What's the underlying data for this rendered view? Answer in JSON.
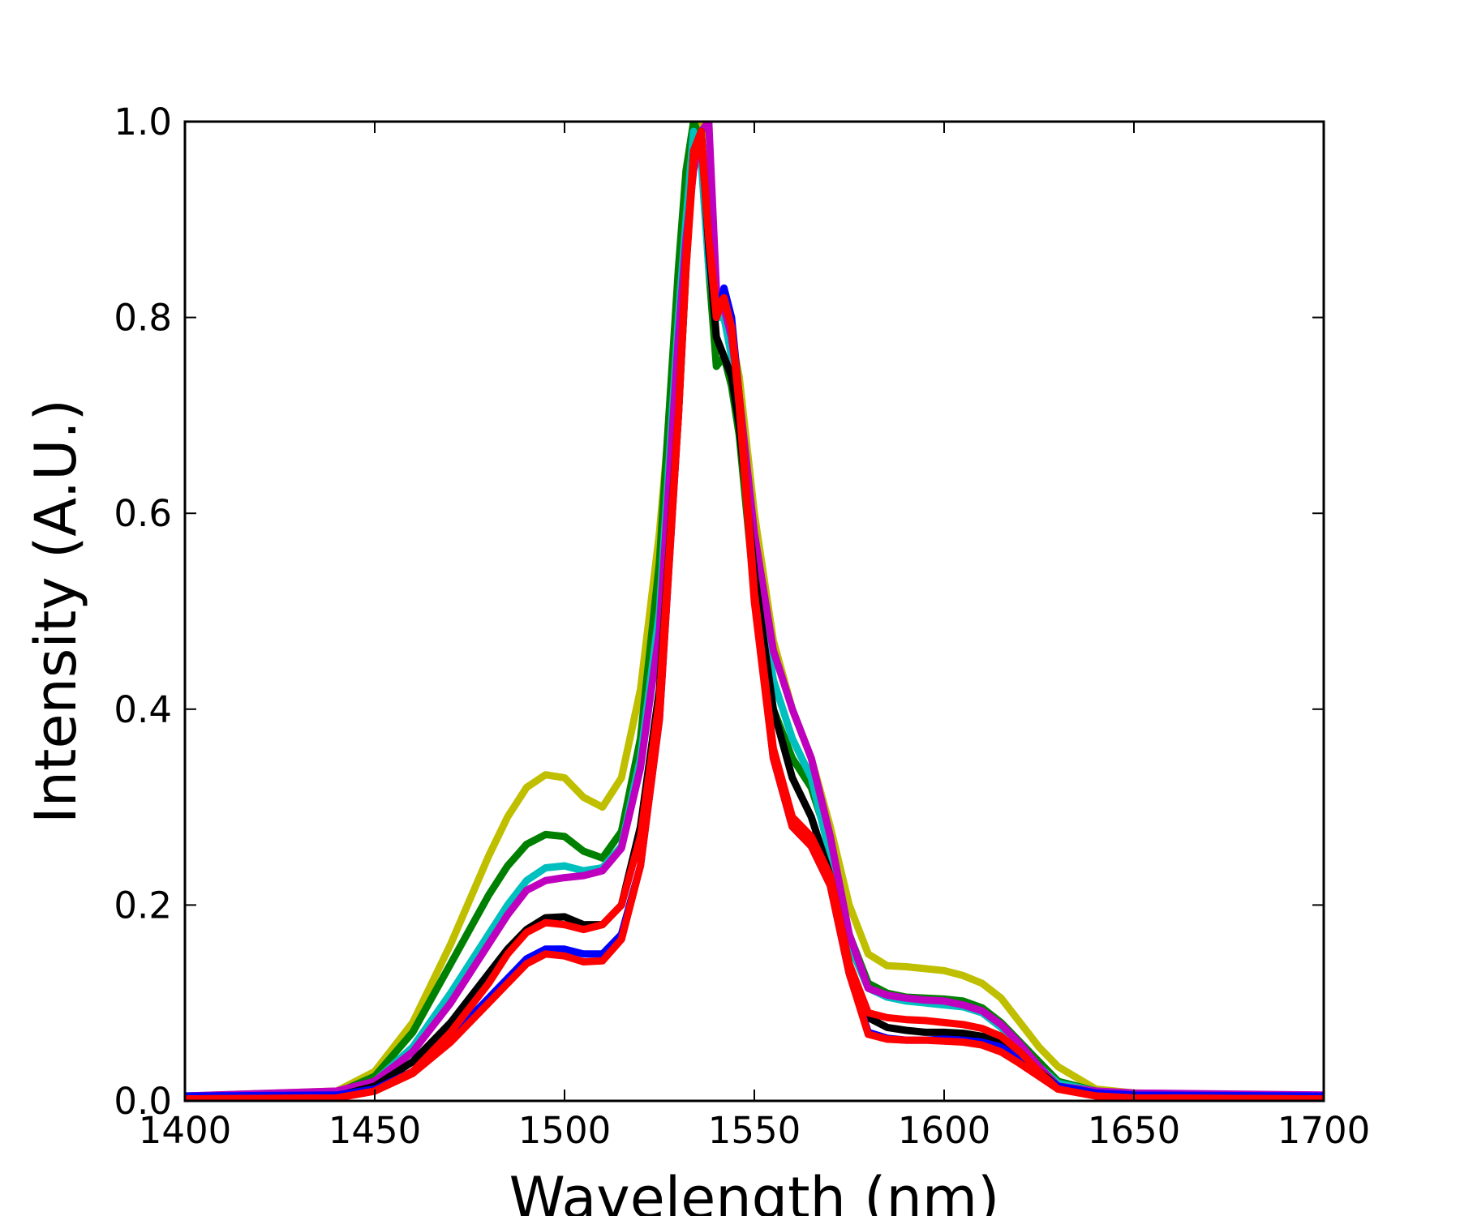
{
  "chart_data": {
    "type": "line",
    "title": "",
    "xlabel": "Wavelength (nm)",
    "ylabel": "Intensity (A.U.)",
    "xlim": [
      1400,
      1700
    ],
    "ylim": [
      0.0,
      1.0
    ],
    "x_ticks": [
      "1400",
      "1450",
      "1500",
      "1550",
      "1600",
      "1650",
      "1700"
    ],
    "y_ticks": [
      "0.0",
      "0.2",
      "0.4",
      "0.6",
      "0.8",
      "1.0"
    ],
    "grid": false,
    "legend": "none",
    "x": [
      1400,
      1440,
      1450,
      1460,
      1470,
      1480,
      1485,
      1490,
      1495,
      1500,
      1505,
      1510,
      1515,
      1520,
      1525,
      1530,
      1532,
      1534,
      1536,
      1538,
      1540,
      1542,
      1544,
      1546,
      1550,
      1555,
      1560,
      1565,
      1570,
      1575,
      1580,
      1585,
      1590,
      1595,
      1600,
      1605,
      1610,
      1615,
      1620,
      1625,
      1630,
      1640,
      1650,
      1700
    ],
    "series": [
      {
        "color": "#bfbf00",
        "values": [
          0.005,
          0.01,
          0.03,
          0.08,
          0.16,
          0.25,
          0.29,
          0.32,
          0.333,
          0.33,
          0.31,
          0.3,
          0.33,
          0.42,
          0.58,
          0.8,
          0.9,
          0.98,
          1.0,
          0.9,
          0.83,
          0.8,
          0.78,
          0.74,
          0.6,
          0.47,
          0.4,
          0.35,
          0.28,
          0.2,
          0.15,
          0.138,
          0.137,
          0.135,
          0.133,
          0.128,
          0.12,
          0.105,
          0.08,
          0.055,
          0.035,
          0.012,
          0.008,
          0.005
        ]
      },
      {
        "color": "#008000",
        "values": [
          0.005,
          0.008,
          0.025,
          0.07,
          0.14,
          0.21,
          0.24,
          0.262,
          0.272,
          0.27,
          0.255,
          0.248,
          0.275,
          0.37,
          0.55,
          0.85,
          0.95,
          1.0,
          0.98,
          0.85,
          0.75,
          0.76,
          0.73,
          0.68,
          0.52,
          0.4,
          0.35,
          0.32,
          0.26,
          0.17,
          0.12,
          0.11,
          0.106,
          0.105,
          0.104,
          0.102,
          0.095,
          0.08,
          0.06,
          0.04,
          0.02,
          0.01,
          0.005,
          0.004
        ]
      },
      {
        "color": "#00bfbf",
        "values": [
          0.005,
          0.008,
          0.02,
          0.055,
          0.11,
          0.17,
          0.2,
          0.225,
          0.238,
          0.24,
          0.235,
          0.238,
          0.26,
          0.35,
          0.5,
          0.8,
          0.9,
          0.99,
          0.96,
          0.85,
          0.8,
          0.8,
          0.76,
          0.7,
          0.56,
          0.43,
          0.37,
          0.33,
          0.25,
          0.16,
          0.115,
          0.106,
          0.102,
          0.1,
          0.098,
          0.096,
          0.09,
          0.075,
          0.055,
          0.035,
          0.018,
          0.01,
          0.006,
          0.005
        ]
      },
      {
        "color": "#bf00bf",
        "values": [
          0.005,
          0.01,
          0.02,
          0.05,
          0.1,
          0.16,
          0.19,
          0.215,
          0.225,
          0.228,
          0.23,
          0.235,
          0.258,
          0.34,
          0.48,
          0.78,
          0.88,
          0.95,
          0.99,
          1.0,
          0.83,
          0.81,
          0.78,
          0.72,
          0.58,
          0.46,
          0.4,
          0.35,
          0.27,
          0.17,
          0.115,
          0.108,
          0.105,
          0.103,
          0.102,
          0.098,
          0.092,
          0.078,
          0.058,
          0.035,
          0.015,
          0.01,
          0.008,
          0.006
        ]
      },
      {
        "color": "#000000",
        "values": [
          0.003,
          0.005,
          0.015,
          0.04,
          0.08,
          0.13,
          0.155,
          0.175,
          0.187,
          0.188,
          0.18,
          0.18,
          0.2,
          0.28,
          0.42,
          0.7,
          0.85,
          0.97,
          0.99,
          0.87,
          0.78,
          0.76,
          0.74,
          0.69,
          0.54,
          0.4,
          0.33,
          0.29,
          0.23,
          0.14,
          0.085,
          0.075,
          0.072,
          0.07,
          0.07,
          0.069,
          0.066,
          0.058,
          0.045,
          0.03,
          0.015,
          0.008,
          0.005,
          0.004
        ]
      },
      {
        "color": "#0000ff",
        "values": [
          0.005,
          0.006,
          0.012,
          0.03,
          0.065,
          0.105,
          0.125,
          0.145,
          0.155,
          0.155,
          0.15,
          0.15,
          0.17,
          0.24,
          0.39,
          0.7,
          0.86,
          0.96,
          0.99,
          0.88,
          0.8,
          0.83,
          0.8,
          0.72,
          0.52,
          0.35,
          0.28,
          0.26,
          0.22,
          0.13,
          0.07,
          0.064,
          0.062,
          0.062,
          0.063,
          0.062,
          0.06,
          0.055,
          0.042,
          0.028,
          0.015,
          0.008,
          0.006,
          0.005
        ]
      },
      {
        "color": "#ff0000",
        "values": [
          0.002,
          0.003,
          0.01,
          0.03,
          0.07,
          0.12,
          0.15,
          0.172,
          0.182,
          0.18,
          0.175,
          0.18,
          0.2,
          0.27,
          0.41,
          0.7,
          0.85,
          0.96,
          0.98,
          0.88,
          0.81,
          0.82,
          0.79,
          0.72,
          0.52,
          0.36,
          0.29,
          0.27,
          0.23,
          0.14,
          0.09,
          0.085,
          0.083,
          0.082,
          0.08,
          0.078,
          0.074,
          0.066,
          0.05,
          0.03,
          0.012,
          0.005,
          0.003,
          0.002
        ]
      },
      {
        "color": "#ff0000",
        "values": [
          0.002,
          0.003,
          0.01,
          0.028,
          0.06,
          0.1,
          0.12,
          0.14,
          0.15,
          0.148,
          0.142,
          0.143,
          0.165,
          0.24,
          0.39,
          0.7,
          0.86,
          0.97,
          0.99,
          0.88,
          0.8,
          0.82,
          0.79,
          0.71,
          0.51,
          0.35,
          0.28,
          0.26,
          0.22,
          0.13,
          0.068,
          0.063,
          0.062,
          0.062,
          0.061,
          0.06,
          0.057,
          0.05,
          0.038,
          0.025,
          0.012,
          0.005,
          0.003,
          0.002
        ]
      }
    ]
  }
}
